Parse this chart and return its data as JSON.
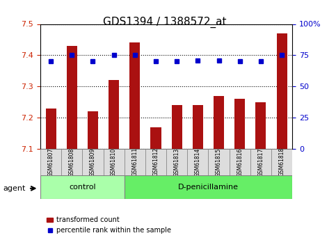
{
  "title": "GDS1394 / 1388572_at",
  "samples": [
    "GSM61807",
    "GSM61808",
    "GSM61809",
    "GSM61810",
    "GSM61811",
    "GSM61812",
    "GSM61813",
    "GSM61814",
    "GSM61815",
    "GSM61816",
    "GSM61817",
    "GSM61818"
  ],
  "transformed_count": [
    7.23,
    7.43,
    7.22,
    7.32,
    7.44,
    7.17,
    7.24,
    7.24,
    7.27,
    7.26,
    7.25,
    7.47
  ],
  "percentile_rank": [
    70,
    75,
    70,
    75,
    75,
    70,
    70,
    71,
    71,
    70,
    70,
    75
  ],
  "ylim_left": [
    7.1,
    7.5
  ],
  "ylim_right": [
    0,
    100
  ],
  "yticks_left": [
    7.1,
    7.2,
    7.3,
    7.4,
    7.5
  ],
  "yticks_right": [
    0,
    25,
    50,
    75,
    100
  ],
  "bar_color": "#aa1111",
  "dot_color": "#0000cc",
  "control_count": 4,
  "group_labels": [
    "control",
    "D-penicillamine"
  ],
  "group_colors": [
    "#aaffaa",
    "#66ee66"
  ],
  "left_label": "transformed count",
  "right_label": "percentile rank within the sample",
  "agent_label": "agent",
  "bg_color": "#ffffff",
  "grid_color": "#000000",
  "tick_color_left": "#cc2200",
  "tick_color_right": "#0000cc"
}
